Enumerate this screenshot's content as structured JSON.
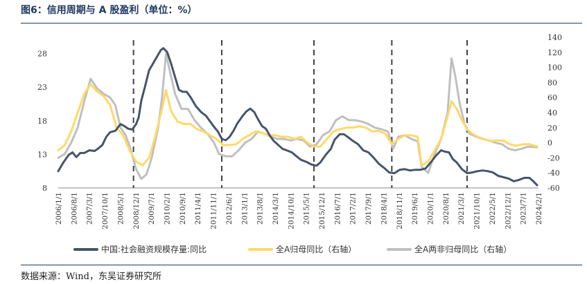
{
  "header": {
    "title": "图6：信用周期与 A 股盈利（单位：%）"
  },
  "footer": {
    "source": "数据来源：Wind，东吴证券研究所"
  },
  "colors": {
    "series_credit": "#44546a",
    "series_all_a": "#ffd966",
    "series_non_fin": "#bfbfbf",
    "axis": "#888888",
    "divider": "#404040",
    "title": "#1f3864"
  },
  "chart_data": {
    "type": "line",
    "x_tick_labels": [
      "2006/1/1",
      "2006/8/1",
      "2007/3/1",
      "2007/10/1",
      "2008/5/1",
      "2008/12/1",
      "2009/7/1",
      "2010/2/1",
      "2010/9/1",
      "2011/4/1",
      "2011/11/1",
      "2012/6/1",
      "2013/1/1",
      "2013/8/1",
      "2014/3/1",
      "2014/10/1",
      "2015/5/1",
      "2015/12/1",
      "2016/7/1",
      "2017/2/1",
      "2017/9/1",
      "2018/4/1",
      "2018/11/1",
      "2019/6/1",
      "2020/1/1",
      "2020/8/1",
      "2021/3/1",
      "2021/10/1",
      "2022/5/1",
      "2022/12/1",
      "2023/7/1",
      "2024/2/1"
    ],
    "x_range": [
      2006.0,
      2024.5
    ],
    "left_axis": {
      "ticks": [
        8,
        13,
        18,
        23,
        28
      ],
      "ylim": [
        8,
        29.8
      ]
    },
    "right_axis": {
      "ticks": [
        -60,
        -40,
        -20,
        0,
        20,
        40,
        60,
        80,
        100,
        120,
        140
      ],
      "ylim": [
        -60,
        140
      ]
    },
    "cycle_dividers": [
      2008.9,
      2012.3,
      2015.85,
      2018.85,
      2021.75
    ],
    "legend_position": "bottom",
    "series": [
      {
        "name": "中国:社会融资规模存量:同比",
        "axis": "left",
        "points": [
          [
            2006.0,
            10.5
          ],
          [
            2006.2,
            11.8
          ],
          [
            2006.4,
            12.9
          ],
          [
            2006.55,
            13.3
          ],
          [
            2006.7,
            12.6
          ],
          [
            2006.85,
            13.2
          ],
          [
            2007.0,
            13.2
          ],
          [
            2007.2,
            13.6
          ],
          [
            2007.4,
            13.5
          ],
          [
            2007.55,
            13.9
          ],
          [
            2007.7,
            14.4
          ],
          [
            2007.85,
            15.6
          ],
          [
            2008.0,
            16.3
          ],
          [
            2008.2,
            16.5
          ],
          [
            2008.4,
            17.5
          ],
          [
            2008.55,
            17.2
          ],
          [
            2008.7,
            16.8
          ],
          [
            2008.85,
            16.7
          ],
          [
            2009.0,
            17.5
          ],
          [
            2009.1,
            18.5
          ],
          [
            2009.2,
            21.0
          ],
          [
            2009.35,
            23.2
          ],
          [
            2009.5,
            25.5
          ],
          [
            2009.65,
            26.5
          ],
          [
            2009.8,
            27.5
          ],
          [
            2009.95,
            28.5
          ],
          [
            2010.05,
            28.8
          ],
          [
            2010.2,
            28.2
          ],
          [
            2010.35,
            26.5
          ],
          [
            2010.5,
            24.5
          ],
          [
            2010.65,
            22.6
          ],
          [
            2010.8,
            22.3
          ],
          [
            2010.95,
            22.3
          ],
          [
            2011.1,
            21.5
          ],
          [
            2011.3,
            20.2
          ],
          [
            2011.5,
            19.3
          ],
          [
            2011.7,
            18.7
          ],
          [
            2011.85,
            17.9
          ],
          [
            2012.0,
            17.1
          ],
          [
            2012.15,
            16.4
          ],
          [
            2012.3,
            15.3
          ],
          [
            2012.45,
            15.1
          ],
          [
            2012.6,
            15.6
          ],
          [
            2012.75,
            16.5
          ],
          [
            2012.9,
            17.6
          ],
          [
            2013.1,
            18.7
          ],
          [
            2013.25,
            19.4
          ],
          [
            2013.4,
            19.8
          ],
          [
            2013.55,
            19.3
          ],
          [
            2013.7,
            18.2
          ],
          [
            2013.85,
            17.2
          ],
          [
            2014.0,
            16.8
          ],
          [
            2014.15,
            15.8
          ],
          [
            2014.3,
            15.0
          ],
          [
            2014.5,
            14.3
          ],
          [
            2014.65,
            13.8
          ],
          [
            2014.8,
            13.6
          ],
          [
            2015.0,
            13.3
          ],
          [
            2015.15,
            12.8
          ],
          [
            2015.35,
            12.2
          ],
          [
            2015.55,
            11.9
          ],
          [
            2015.75,
            11.5
          ],
          [
            2015.95,
            11.3
          ],
          [
            2016.1,
            11.8
          ],
          [
            2016.3,
            12.9
          ],
          [
            2016.5,
            13.8
          ],
          [
            2016.65,
            15.2
          ],
          [
            2016.85,
            16.0
          ],
          [
            2017.0,
            16.0
          ],
          [
            2017.15,
            15.6
          ],
          [
            2017.35,
            15.0
          ],
          [
            2017.55,
            14.5
          ],
          [
            2017.75,
            13.6
          ],
          [
            2017.95,
            13.3
          ],
          [
            2018.15,
            12.5
          ],
          [
            2018.35,
            11.6
          ],
          [
            2018.55,
            11.0
          ],
          [
            2018.75,
            10.3
          ],
          [
            2018.95,
            10.2
          ],
          [
            2019.15,
            10.7
          ],
          [
            2019.35,
            10.8
          ],
          [
            2019.55,
            10.6
          ],
          [
            2019.75,
            10.7
          ],
          [
            2019.95,
            10.7
          ],
          [
            2020.15,
            10.9
          ],
          [
            2020.35,
            11.8
          ],
          [
            2020.55,
            12.8
          ],
          [
            2020.75,
            13.6
          ],
          [
            2020.9,
            13.4
          ],
          [
            2021.05,
            13.3
          ],
          [
            2021.2,
            12.3
          ],
          [
            2021.35,
            11.8
          ],
          [
            2021.55,
            10.8
          ],
          [
            2021.75,
            10.2
          ],
          [
            2021.95,
            10.3
          ],
          [
            2022.15,
            10.5
          ],
          [
            2022.35,
            10.6
          ],
          [
            2022.55,
            10.5
          ],
          [
            2022.75,
            10.3
          ],
          [
            2022.95,
            9.8
          ],
          [
            2023.15,
            9.6
          ],
          [
            2023.35,
            9.4
          ],
          [
            2023.55,
            9.0
          ],
          [
            2023.75,
            9.2
          ],
          [
            2023.95,
            9.5
          ],
          [
            2024.15,
            9.5
          ],
          [
            2024.3,
            9.0
          ],
          [
            2024.45,
            8.4
          ]
        ]
      },
      {
        "name": "全A归母同比（右轴）",
        "axis": "right",
        "points": [
          [
            2006.0,
            -10
          ],
          [
            2006.25,
            -3
          ],
          [
            2006.5,
            15
          ],
          [
            2006.75,
            40
          ],
          [
            2007.0,
            65
          ],
          [
            2007.25,
            78
          ],
          [
            2007.5,
            68
          ],
          [
            2007.75,
            62
          ],
          [
            2008.0,
            50
          ],
          [
            2008.25,
            20
          ],
          [
            2008.5,
            10
          ],
          [
            2008.75,
            -10
          ],
          [
            2009.0,
            -25
          ],
          [
            2009.25,
            -30
          ],
          [
            2009.5,
            -20
          ],
          [
            2009.75,
            10
          ],
          [
            2010.0,
            45
          ],
          [
            2010.15,
            70
          ],
          [
            2010.35,
            42
          ],
          [
            2010.6,
            28
          ],
          [
            2010.85,
            25
          ],
          [
            2011.1,
            25
          ],
          [
            2011.35,
            18
          ],
          [
            2011.6,
            15
          ],
          [
            2011.85,
            10
          ],
          [
            2012.1,
            5
          ],
          [
            2012.35,
            -3
          ],
          [
            2012.6,
            -3
          ],
          [
            2012.85,
            -2
          ],
          [
            2013.1,
            5
          ],
          [
            2013.35,
            10
          ],
          [
            2013.6,
            15
          ],
          [
            2013.85,
            13
          ],
          [
            2014.1,
            10
          ],
          [
            2014.35,
            10
          ],
          [
            2014.6,
            8
          ],
          [
            2014.85,
            8
          ],
          [
            2015.1,
            5
          ],
          [
            2015.35,
            8
          ],
          [
            2015.6,
            0
          ],
          [
            2015.85,
            -5
          ],
          [
            2016.1,
            -5
          ],
          [
            2016.35,
            5
          ],
          [
            2016.6,
            15
          ],
          [
            2016.85,
            18
          ],
          [
            2017.1,
            20
          ],
          [
            2017.35,
            20
          ],
          [
            2017.6,
            22
          ],
          [
            2017.85,
            20
          ],
          [
            2018.1,
            15
          ],
          [
            2018.35,
            16
          ],
          [
            2018.6,
            12
          ],
          [
            2018.85,
            -2
          ],
          [
            2019.1,
            5
          ],
          [
            2019.35,
            10
          ],
          [
            2019.6,
            10
          ],
          [
            2019.85,
            8
          ],
          [
            2020.0,
            -30
          ],
          [
            2020.25,
            -25
          ],
          [
            2020.5,
            -10
          ],
          [
            2020.75,
            5
          ],
          [
            2021.0,
            35
          ],
          [
            2021.15,
            55
          ],
          [
            2021.35,
            45
          ],
          [
            2021.55,
            30
          ],
          [
            2021.75,
            18
          ],
          [
            2021.95,
            12
          ],
          [
            2022.15,
            8
          ],
          [
            2022.4,
            5
          ],
          [
            2022.65,
            2
          ],
          [
            2022.9,
            3
          ],
          [
            2023.15,
            3
          ],
          [
            2023.4,
            -2
          ],
          [
            2023.65,
            -4
          ],
          [
            2023.9,
            -2
          ],
          [
            2024.15,
            -2
          ],
          [
            2024.45,
            -5
          ]
        ]
      },
      {
        "name": "全A两非归母同比（右轴）",
        "axis": "right",
        "points": [
          [
            2006.0,
            -20
          ],
          [
            2006.25,
            -15
          ],
          [
            2006.5,
            0
          ],
          [
            2006.75,
            20
          ],
          [
            2007.0,
            55
          ],
          [
            2007.25,
            85
          ],
          [
            2007.5,
            72
          ],
          [
            2007.75,
            65
          ],
          [
            2008.0,
            60
          ],
          [
            2008.2,
            50
          ],
          [
            2008.4,
            20
          ],
          [
            2008.6,
            10
          ],
          [
            2008.8,
            -10
          ],
          [
            2009.0,
            -35
          ],
          [
            2009.2,
            -48
          ],
          [
            2009.4,
            -42
          ],
          [
            2009.6,
            -20
          ],
          [
            2009.85,
            20
          ],
          [
            2010.0,
            60
          ],
          [
            2010.15,
            118
          ],
          [
            2010.3,
            95
          ],
          [
            2010.5,
            65
          ],
          [
            2010.75,
            45
          ],
          [
            2011.0,
            45
          ],
          [
            2011.25,
            30
          ],
          [
            2011.5,
            20
          ],
          [
            2011.75,
            12
          ],
          [
            2012.0,
            0
          ],
          [
            2012.2,
            -15
          ],
          [
            2012.45,
            -18
          ],
          [
            2012.7,
            -18
          ],
          [
            2012.95,
            -10
          ],
          [
            2013.2,
            0
          ],
          [
            2013.45,
            5
          ],
          [
            2013.7,
            15
          ],
          [
            2013.95,
            12
          ],
          [
            2014.2,
            8
          ],
          [
            2014.45,
            5
          ],
          [
            2014.7,
            5
          ],
          [
            2014.95,
            3
          ],
          [
            2015.2,
            5
          ],
          [
            2015.45,
            3
          ],
          [
            2015.7,
            -5
          ],
          [
            2015.95,
            -2
          ],
          [
            2016.2,
            10
          ],
          [
            2016.45,
            15
          ],
          [
            2016.7,
            30
          ],
          [
            2016.95,
            35
          ],
          [
            2017.2,
            30
          ],
          [
            2017.45,
            30
          ],
          [
            2017.7,
            28
          ],
          [
            2017.95,
            25
          ],
          [
            2018.2,
            20
          ],
          [
            2018.45,
            18
          ],
          [
            2018.7,
            15
          ],
          [
            2018.9,
            -8
          ],
          [
            2019.1,
            8
          ],
          [
            2019.35,
            10
          ],
          [
            2019.6,
            5
          ],
          [
            2019.85,
            2
          ],
          [
            2020.0,
            -32
          ],
          [
            2020.25,
            -40
          ],
          [
            2020.5,
            -15
          ],
          [
            2020.75,
            5
          ],
          [
            2021.0,
            40
          ],
          [
            2021.15,
            112
          ],
          [
            2021.3,
            88
          ],
          [
            2021.45,
            55
          ],
          [
            2021.65,
            25
          ],
          [
            2021.85,
            12
          ],
          [
            2022.1,
            8
          ],
          [
            2022.35,
            5
          ],
          [
            2022.6,
            3
          ],
          [
            2022.85,
            0
          ],
          [
            2023.1,
            -2
          ],
          [
            2023.35,
            -8
          ],
          [
            2023.6,
            -10
          ],
          [
            2023.85,
            -8
          ],
          [
            2024.1,
            -5
          ],
          [
            2024.45,
            -6
          ]
        ]
      }
    ]
  }
}
